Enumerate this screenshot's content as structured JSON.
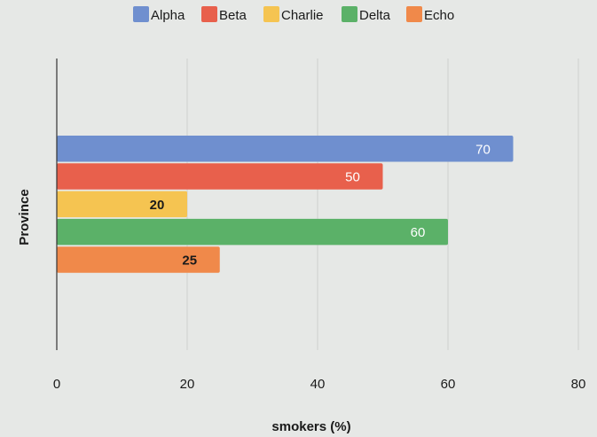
{
  "chart_data": {
    "type": "bar",
    "orientation": "horizontal",
    "categories": [
      ""
    ],
    "series": [
      {
        "name": "Alpha",
        "values": [
          70
        ],
        "color": "#6f8fcf",
        "label_color": "#ffffff",
        "label_bold": false
      },
      {
        "name": "Beta",
        "values": [
          50
        ],
        "color": "#e8604c",
        "label_color": "#ffffff",
        "label_bold": false
      },
      {
        "name": "Charlie",
        "values": [
          20
        ],
        "color": "#f5c451",
        "label_color": "#1a1a1a",
        "label_bold": true
      },
      {
        "name": "Delta",
        "values": [
          60
        ],
        "color": "#5bb168",
        "label_color": "#ffffff",
        "label_bold": false
      },
      {
        "name": "Echo",
        "values": [
          25
        ],
        "color": "#f0894a",
        "label_color": "#1a1a1a",
        "label_bold": true
      }
    ],
    "xlabel": "smokers (%)",
    "ylabel": "Province",
    "xlim": [
      0,
      80
    ],
    "xticks": [
      "0",
      "20",
      "40",
      "60",
      "80"
    ],
    "grid": true,
    "legend_position": "top"
  }
}
